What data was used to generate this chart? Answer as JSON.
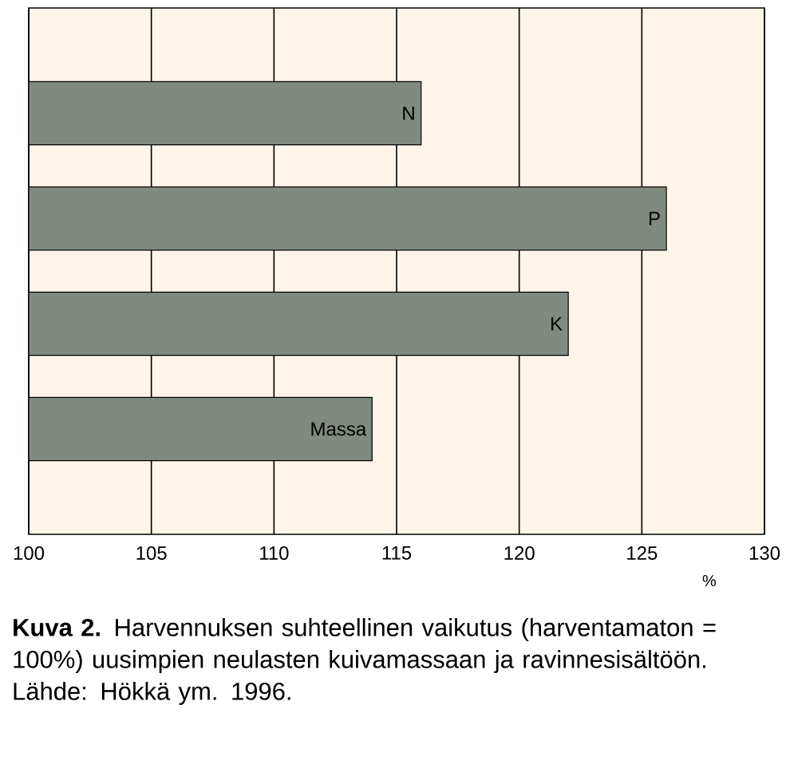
{
  "chart_data": {
    "type": "bar",
    "orientation": "horizontal",
    "categories": [
      "N",
      "P",
      "K",
      "Massa"
    ],
    "values": [
      116,
      126,
      122,
      114
    ],
    "color": "#808a7e",
    "xlim": [
      100,
      130
    ],
    "xticks": [
      100,
      105,
      110,
      115,
      120,
      125,
      130
    ],
    "xlabel": "%",
    "grid": "x",
    "annotations": [
      "**Kuva 2.** Harvennuksen suhteellinen vaikutus (harventamaton = 100%) uusimpien neulasten kuivamassaan ja ravinnesisältöön. Lähde: Hökkä ym. 1996."
    ]
  }
}
